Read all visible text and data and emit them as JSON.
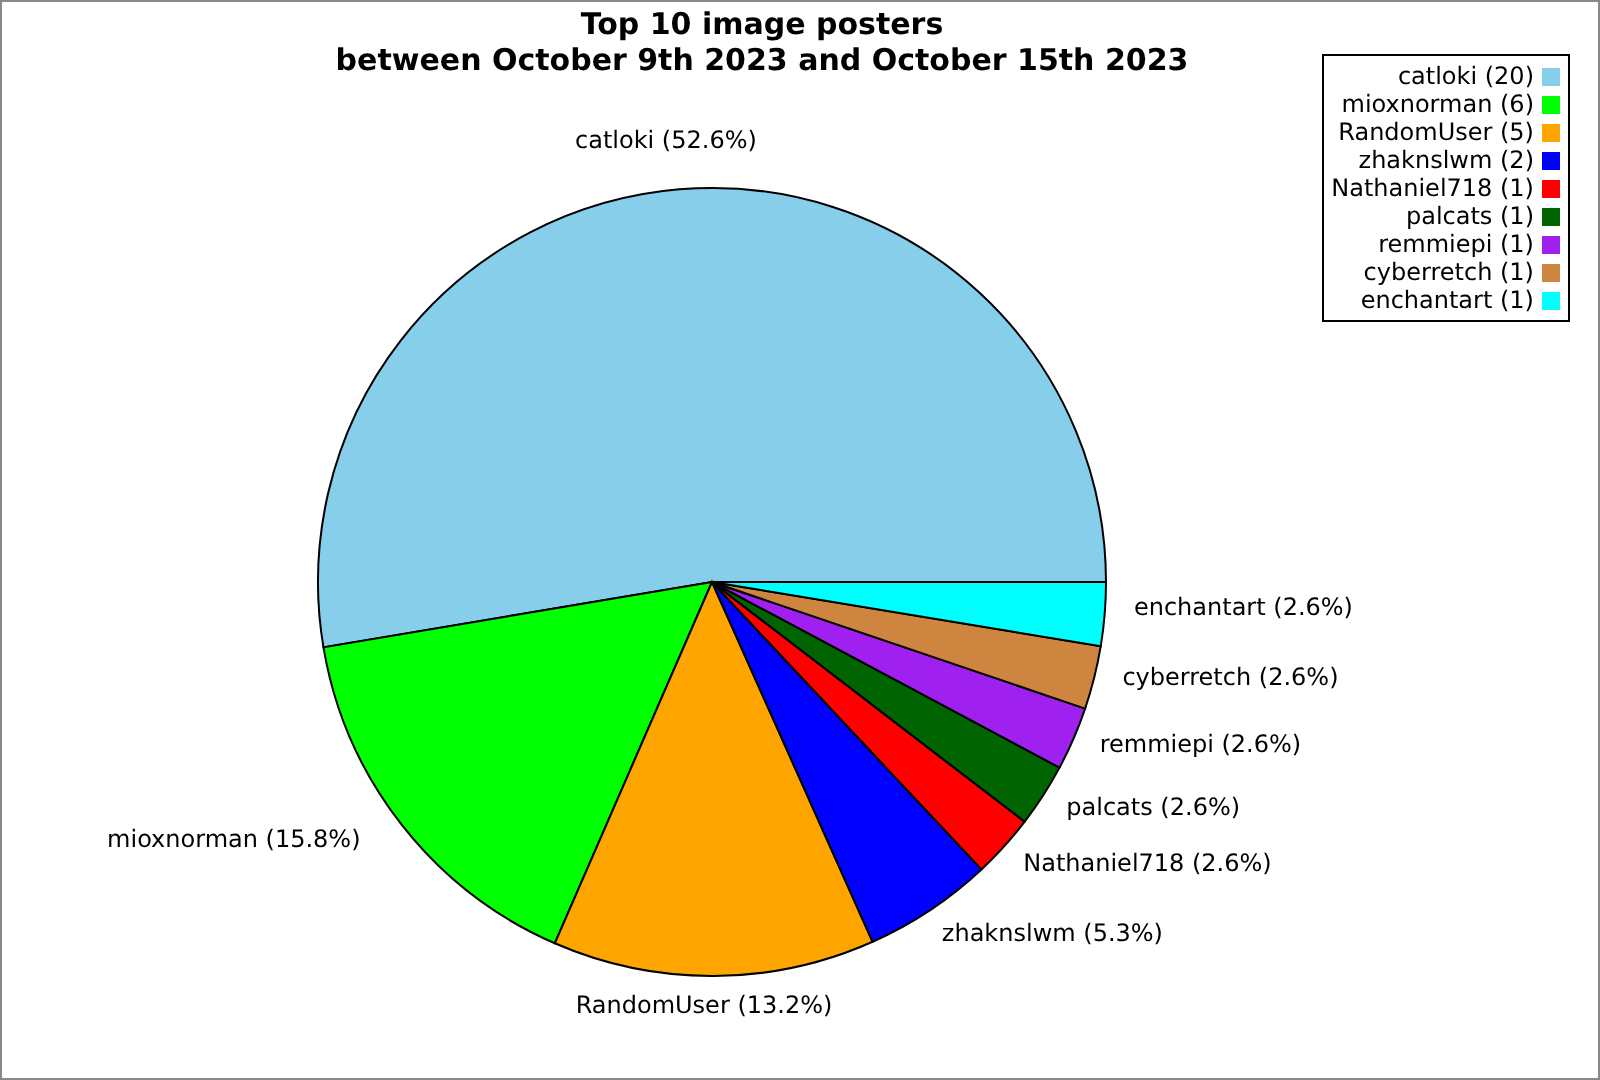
{
  "chart_data": {
    "type": "pie",
    "title": "Top 10 image posters\nbetween October 9th 2023 and October 15th 2023",
    "categories": [
      "catloki (20)",
      "mioxnorman (6)",
      "RandomUser (5)",
      "zhaknslwm (2)",
      "Nathaniel718 (1)",
      "palcats (1)",
      "remmiepi (1)",
      "cyberretch (1)",
      "enchantart (1)"
    ],
    "values": [
      52.6,
      15.8,
      13.2,
      5.3,
      2.6,
      2.6,
      2.6,
      2.6,
      2.6
    ],
    "value_labels": [
      "catloki (52.6%)",
      "mioxnorman (15.8%)",
      "RandomUser (13.2%)",
      "zhaknslwm (5.3%)",
      "Nathaniel718 (2.6%)",
      "palcats (2.6%)",
      "remmiepi (2.6%)",
      "cyberretch (2.6%)",
      "enchantart (2.6%)"
    ],
    "colors": [
      "#87ceeb",
      "#00ff00",
      "#ffa500",
      "#0000ff",
      "#ff0000",
      "#006400",
      "#a020f0",
      "#cd853f",
      "#00ffff"
    ],
    "legend": "top right"
  }
}
